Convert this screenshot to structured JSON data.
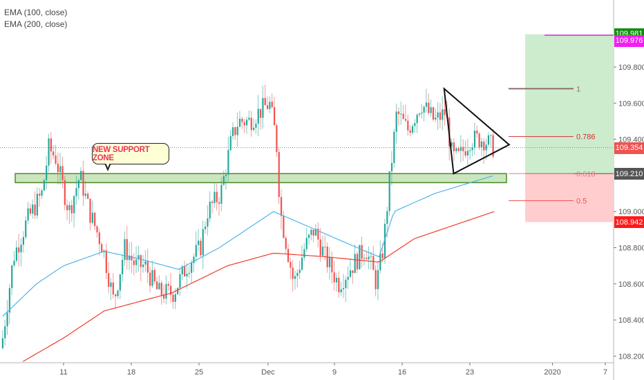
{
  "legend": {
    "ema100": "EMA (100, close)",
    "ema200": "EMA (200, close)"
  },
  "annotation": "NEW SUPPORT ZONE",
  "price_tags": [
    {
      "label": "109.981",
      "value": 109.981,
      "color": "#109010"
    },
    {
      "label": "109.976",
      "value": 109.976,
      "color": "#f21ef2"
    },
    {
      "label": "109.354",
      "value": 109.354,
      "color": "#ef5350"
    },
    {
      "label": "109.210",
      "value": 109.21,
      "color": "#555555"
    },
    {
      "label": "108.942",
      "value": 108.942,
      "color": "#ff1a1a"
    }
  ],
  "fib_labels": [
    {
      "label": "1",
      "value": 109.68
    },
    {
      "label": "0.786",
      "value": 109.415
    },
    {
      "label": "0.618",
      "value": 109.21
    },
    {
      "label": "0.5",
      "value": 109.06
    }
  ],
  "chart_data": {
    "type": "candlestick",
    "y_ticks": [
      "109.800",
      "109.600",
      "109.400",
      "109.000",
      "108.800",
      "108.600",
      "108.400",
      "108.200"
    ],
    "y_tick_values": [
      109.8,
      109.6,
      109.4,
      109.0,
      108.8,
      108.6,
      108.4,
      108.2
    ],
    "ylim": [
      108.15,
      110.05
    ],
    "x_ticks": [
      {
        "label": "11",
        "day": 0
      },
      {
        "label": "18",
        "day": 5
      },
      {
        "label": "25",
        "day": 10
      },
      {
        "label": "Dec",
        "day": 15.1
      },
      {
        "label": "9",
        "day": 20
      },
      {
        "label": "16",
        "day": 25
      },
      {
        "label": "23",
        "day": 30
      },
      {
        "label": "2020",
        "day": 36.1
      },
      {
        "label": "7",
        "day": 40
      }
    ],
    "close_path": [
      [
        -4.5,
        108.3
      ],
      [
        -3.7,
        108.75
      ],
      [
        -2.7,
        108.95
      ],
      [
        -1.6,
        109.1
      ],
      [
        -1.1,
        109.35
      ],
      [
        -0.6,
        109.3
      ],
      [
        0.4,
        109.0
      ],
      [
        1.2,
        109.2
      ],
      [
        1.9,
        109.0
      ],
      [
        2.9,
        108.8
      ],
      [
        3.7,
        108.5
      ],
      [
        4.5,
        108.8
      ],
      [
        5.3,
        108.7
      ],
      [
        6.0,
        108.7
      ],
      [
        7.0,
        108.55
      ],
      [
        8.1,
        108.55
      ],
      [
        9.1,
        108.7
      ],
      [
        10.1,
        108.8
      ],
      [
        10.6,
        109.0
      ],
      [
        11.6,
        109.1
      ],
      [
        12.4,
        109.4
      ],
      [
        12.9,
        109.5
      ],
      [
        13.7,
        109.5
      ],
      [
        14.4,
        109.55
      ],
      [
        15.2,
        109.6
      ],
      [
        15.7,
        109.4
      ],
      [
        16.0,
        109.0
      ],
      [
        16.5,
        108.8
      ],
      [
        17.0,
        108.6
      ],
      [
        17.8,
        108.8
      ],
      [
        18.5,
        108.9
      ],
      [
        19.3,
        108.75
      ],
      [
        20.3,
        108.6
      ],
      [
        21.3,
        108.7
      ],
      [
        22.3,
        108.8
      ],
      [
        23.1,
        108.6
      ],
      [
        23.6,
        108.8
      ],
      [
        24.1,
        109.2
      ],
      [
        24.6,
        109.55
      ],
      [
        25.4,
        109.45
      ],
      [
        26.4,
        109.6
      ],
      [
        27.4,
        109.5
      ],
      [
        28.2,
        109.55
      ],
      [
        28.7,
        109.3
      ],
      [
        29.2,
        109.3
      ],
      [
        30.0,
        109.4
      ],
      [
        31.0,
        109.4
      ],
      [
        31.8,
        109.35
      ]
    ],
    "ema100": [
      [
        -4.5,
        108.42
      ],
      [
        -2,
        108.6
      ],
      [
        0,
        108.7
      ],
      [
        3,
        108.78
      ],
      [
        5.5,
        108.74
      ],
      [
        8.5,
        108.68
      ],
      [
        11.5,
        108.8
      ],
      [
        15.5,
        109.0
      ],
      [
        18.6,
        108.9
      ],
      [
        22.3,
        108.78
      ],
      [
        23.3,
        108.75
      ],
      [
        24.4,
        109.0
      ],
      [
        27.4,
        109.1
      ],
      [
        31.8,
        109.2
      ]
    ],
    "ema200": [
      [
        -3,
        108.17
      ],
      [
        0,
        108.3
      ],
      [
        3,
        108.45
      ],
      [
        8,
        108.55
      ],
      [
        12.1,
        108.7
      ],
      [
        15.5,
        108.77
      ],
      [
        19.3,
        108.75
      ],
      [
        23.3,
        108.72
      ],
      [
        25.9,
        108.85
      ],
      [
        31.8,
        109.0
      ]
    ],
    "support_zone": [
      109.16,
      109.21
    ],
    "last_price": 109.354,
    "triangle": [
      [
        28.1,
        109.68
      ],
      [
        32.9,
        109.37
      ],
      [
        28.8,
        109.21
      ]
    ]
  }
}
